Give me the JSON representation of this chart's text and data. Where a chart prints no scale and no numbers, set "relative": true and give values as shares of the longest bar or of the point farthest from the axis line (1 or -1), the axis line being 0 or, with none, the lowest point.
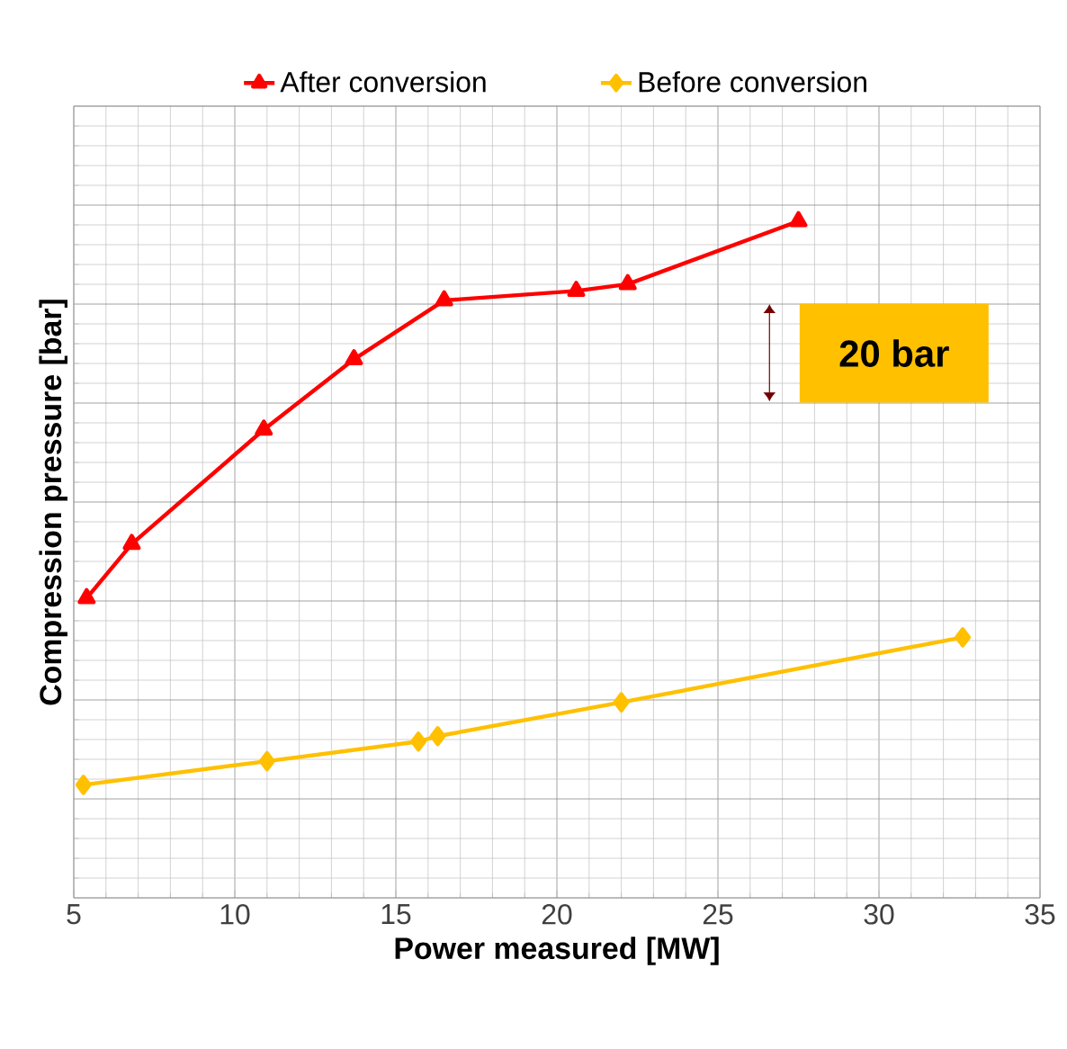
{
  "chart_data": {
    "type": "line",
    "relative": true,
    "xlabel": "Power measured [MW]",
    "ylabel": "Compression pressure [bar]",
    "xlim": [
      5,
      35
    ],
    "xticks": [
      5,
      10,
      15,
      20,
      25,
      30,
      35
    ],
    "grid": true,
    "legend": "top",
    "annotations": [
      "20 bar"
    ],
    "series": [
      {
        "name": "After conversion",
        "color": "#ff0000",
        "marker": "triangle",
        "x": [
          5.4,
          6.8,
          10.9,
          13.7,
          16.5,
          20.6,
          22.2,
          27.5
        ],
        "values": [
          0.443,
          0.523,
          0.692,
          0.796,
          0.883,
          0.897,
          0.907,
          1
        ]
      },
      {
        "name": "Before conversion",
        "color": "#ffc000",
        "marker": "diamond",
        "x": [
          5.3,
          11.0,
          15.7,
          16.3,
          22.0,
          32.6
        ],
        "values": [
          0.167,
          0.202,
          0.231,
          0.239,
          0.289,
          0.385
        ]
      }
    ]
  }
}
